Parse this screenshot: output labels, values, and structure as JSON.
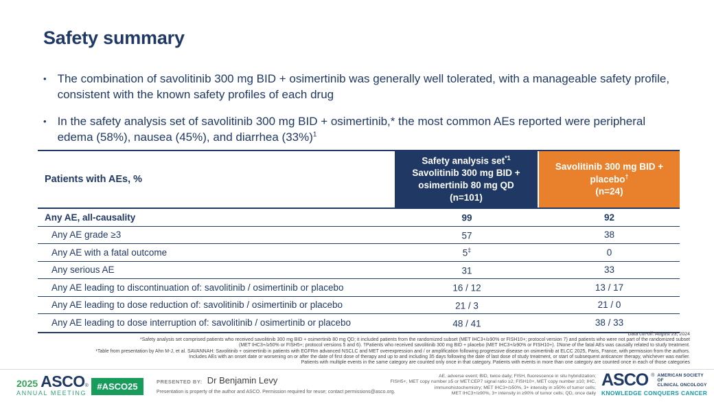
{
  "slide": {
    "title": "Safety summary",
    "bullet_char": "•",
    "bullets": [
      {
        "text": "The combination of savolitinib 300 mg BID + osimertinib was generally well tolerated, with a manageable safety profile, consistent with the known safety profiles of each drug",
        "sup": ""
      },
      {
        "text": "In the safety analysis set of savolitinib 300 mg BID + osimertinib,* the most common AEs reported were peripheral edema (58%), nausea (45%), and diarrhea (33%)",
        "sup": "1"
      }
    ]
  },
  "table": {
    "row_header": "Patients with AEs, %",
    "columns": [
      {
        "title": "Safety analysis set",
        "title_sup": "*1",
        "subtitle": "Savolitinib 300 mg BID + osimertinib 80 mg QD",
        "n": "(n=101)"
      },
      {
        "title": "Savolitinib 300 mg BID + placebo",
        "title_sup": "†",
        "subtitle": "",
        "n": "(n=24)"
      }
    ],
    "rows": [
      {
        "label": "Any AE, all-causality",
        "v1": "99",
        "v1_sup": "",
        "v2": "92"
      },
      {
        "label": "Any AE grade ≥3",
        "v1": "57",
        "v1_sup": "",
        "v2": "38"
      },
      {
        "label": "Any AE with a fatal outcome",
        "v1": "5",
        "v1_sup": "‡",
        "v2": "0"
      },
      {
        "label": "Any serious AE",
        "v1": "31",
        "v1_sup": "",
        "v2": "33"
      },
      {
        "label": "Any AE leading to discontinuation of: savolitinib / osimertinib or placebo",
        "v1": "16 / 12",
        "v1_sup": "",
        "v2": "13 / 17"
      },
      {
        "label": "Any AE leading to dose reduction of: savolitinib / osimertinib or placebo",
        "v1": "21 / 3",
        "v1_sup": "",
        "v2": "21 / 0"
      },
      {
        "label": "Any AE leading to dose interruption of: savolitinib / osimertinib or placebo",
        "v1": "48 / 41",
        "v1_sup": "",
        "v2": "38 / 33"
      }
    ]
  },
  "footnotes": {
    "cutoff": "Data cut-off: August 23, 2024",
    "lines": [
      "*Safety analysis set comprised patients who received savolitinib 300 mg BID + osimertinib 80 mg QD; it included patients from the randomized subset (MET IHC3+/≥90% or FISH10+; protocol version 7) and patients who were not part of the randomized subset",
      "(MET IHC3+/≥50% or FISH5+; protocol versions 5 and 6). †Patients who received savolitinib 300 mg BID + placebo (MET IHC3+/≥90% or FISH10+). ‡None of the fatal AEs was causally related to study treatment.",
      "¹Table from presentation by Ahn M-J, et al. SAVANNAH: Savolitinib + osimertinib in patients with EGFRm advanced NSCLC and MET overexpression and / or amplification following progressive disease on osimertinib at ELCC 2025, Paris, France, with permission from the authors.",
      "Includes AEs with an onset date or worsening on or after the date of first dose of therapy and up to and including 35 days following the date of last dose of study treatment, or start of subsequent anticancer therapy, whichever was earlier.",
      "Patients with multiple events in the same category are counted only once in that category. Patients with events in more than one category are counted once in each of those categories"
    ]
  },
  "footer": {
    "year": "2025",
    "asco_wordmark": "ASCO",
    "reg_mark": "®",
    "annual_meeting": "ANNUAL MEETING",
    "hashtag": "#ASCO25",
    "presented_by_label": "PRESENTED BY:",
    "presenter": "Dr Benjamin Levy",
    "permission": "Presentation is property of the author and ASCO. Permission required for reuse; contact permissions@asco.org.",
    "abbreviations": [
      "AE, adverse event; BID, twice daily; FISH, fluorescence in situ hybridization;",
      "FISH5+, MET copy number ≥5 or MET:CEP7 signal ratio ≥2; FISH10+, MET copy number ≥10; IHC,",
      "immunohistochemistry; MET IHC3+/≥50%, 3+ intensity in ≥50% of tumor cells;",
      "MET IHC3+/≥90%, 3+ intensity in ≥90% of tumor cells; QD, once daily"
    ],
    "asco_right": "ASCO",
    "society_line1": "AMERICAN SOCIETY OF",
    "society_line2": "CLINICAL ONCOLOGY",
    "tagline": "KNOWLEDGE CONQUERS CANCER"
  },
  "colors": {
    "navy": "#1f3864",
    "orange": "#e8802c",
    "badge_green": "#189c5c",
    "tagline_teal": "#0e9aa7"
  }
}
